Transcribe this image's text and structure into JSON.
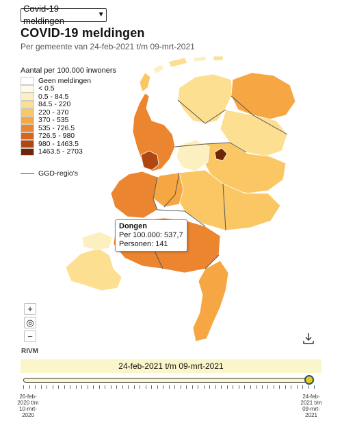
{
  "select": {
    "value": "Covid-19 meldingen"
  },
  "title": "COVID-19 meldingen",
  "subtitle": "Per gemeente van 24-feb-2021 t/m 09-mrt-2021",
  "legend": {
    "title": "Aantal per 100.000 inwoners",
    "items": [
      {
        "label": "Geen meldingen",
        "color": "#ffffff"
      },
      {
        "label": "< 0.5",
        "color": "#fffbe8"
      },
      {
        "label": "0.5 - 84.5",
        "color": "#fdf0c0"
      },
      {
        "label": "84.5 - 220",
        "color": "#fddf92"
      },
      {
        "label": "220 - 370",
        "color": "#fbc764"
      },
      {
        "label": "370 - 535",
        "color": "#f6a743"
      },
      {
        "label": "535 - 726.5",
        "color": "#ec8530"
      },
      {
        "label": "726.5 - 980",
        "color": "#d8641d"
      },
      {
        "label": "980 - 1463.5",
        "color": "#b04612"
      },
      {
        "label": "1463.5 - 2703",
        "color": "#6e2606"
      }
    ],
    "ggd_label": "GGD-regio's"
  },
  "tooltip": {
    "name": "Dongen",
    "line1": "Per 100.000: 537,7",
    "line2": "Personen: 141"
  },
  "zoom": {
    "in": "+",
    "reset": "◎",
    "out": "−"
  },
  "attribution": "RIVM",
  "slider": {
    "period_label": "24-feb-2021 t/m 09-mrt-2021",
    "start_label": [
      "26-feb-",
      "2020 t/m",
      "10-mrt-",
      "2020"
    ],
    "end_label": [
      "24-feb-",
      "2021 t/m",
      "09-mrt-",
      "2021"
    ],
    "position": 1.0
  },
  "icons": {
    "download": "download-icon",
    "chevron": "chevron-down-icon",
    "locate": "target-icon"
  }
}
